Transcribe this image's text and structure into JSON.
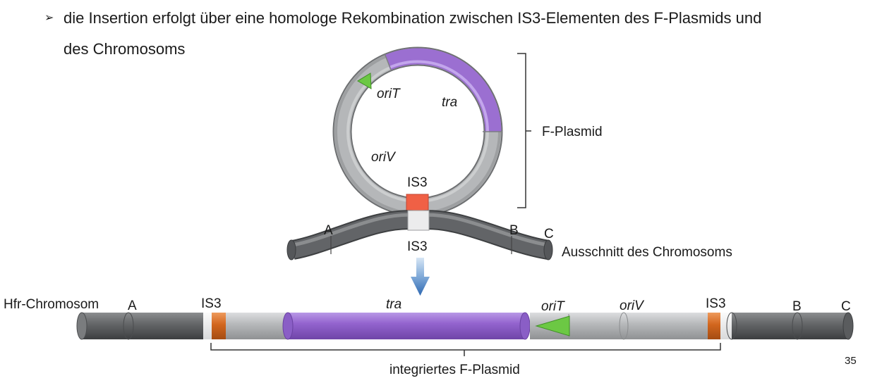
{
  "bullet": {
    "marker": "➢",
    "line1": "die Insertion erfolgt über eine homologe Rekombination zwischen IS3-Elementen des F-Plasmids und",
    "line2": "des Chromosoms"
  },
  "plasmid": {
    "oriT": "oriT",
    "tra": "tra",
    "oriV": "oriV",
    "is3": "IS3",
    "bracket_label": "F-Plasmid"
  },
  "chromosome_segment": {
    "A": "A",
    "B": "B",
    "C": "C",
    "is3": "IS3",
    "caption": "Ausschnitt des Chromosoms"
  },
  "hfr": {
    "title": "Hfr-Chromosom",
    "A": "A",
    "is3_left": "IS3",
    "tra": "tra",
    "oriT": "oriT",
    "oriV": "oriV",
    "is3_right": "IS3",
    "B": "B",
    "C": "C",
    "bracket_label": "integriertes F-Plasmid"
  },
  "page_number": "35",
  "colors": {
    "tra_purple": "#9b6fd1",
    "is3_plasmid_red": "#f06045",
    "is3_hfr_orange": "#d2661e",
    "oriT_green": "#6cc844",
    "plasmid_grey": "#b4b6b8",
    "chromosome_dark": "#606365",
    "arrow_blue": "#3a79c0"
  }
}
